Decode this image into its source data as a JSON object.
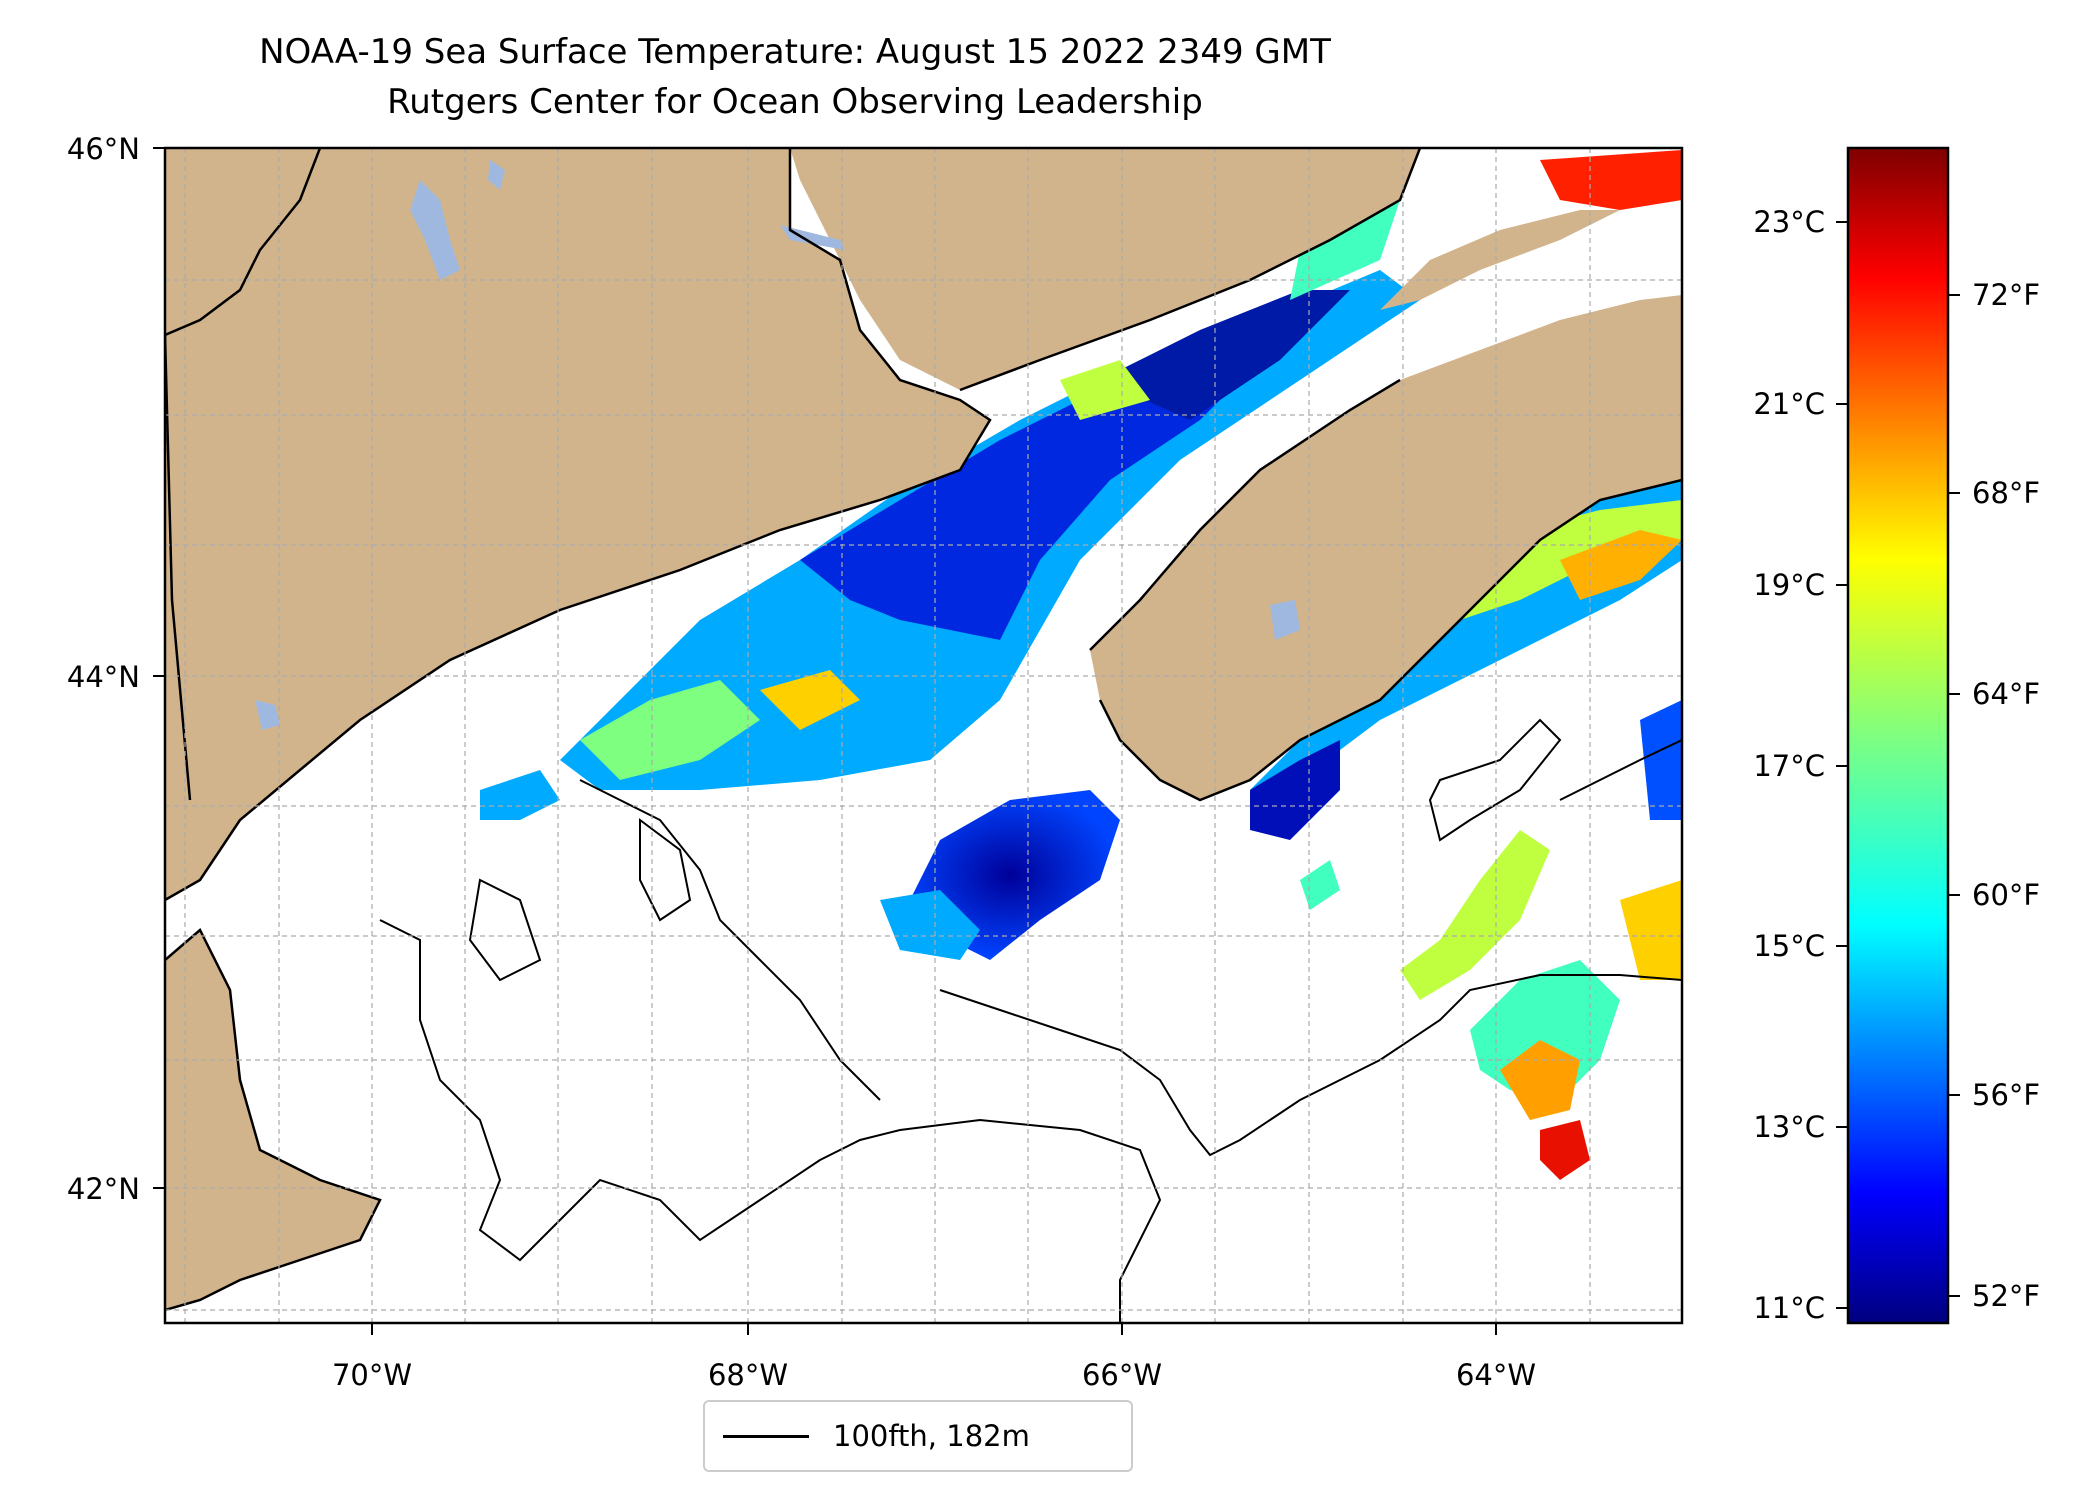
{
  "title": {
    "line1": "NOAA-19 Sea Surface Temperature: August 15 2022 2349 GMT",
    "line2": "Rutgers Center for Ocean Observing Leadership"
  },
  "map": {
    "lon_ticks": [
      "70°W",
      "68°W",
      "66°W",
      "64°W"
    ],
    "lat_ticks": [
      "46°N",
      "44°N",
      "42°N"
    ],
    "lon_range": [
      -71.2,
      -63.0
    ],
    "lat_range": [
      41.5,
      46.0
    ],
    "gridlines": true,
    "land_color": "#d2b48c",
    "lake_color": "#9fb8e0",
    "cloud_mask_color": "#ffffff"
  },
  "legend": {
    "label": "100fth, 182m",
    "placement": "bottom-center"
  },
  "colorbar": {
    "colormap": "jet",
    "celsius_ticks": [
      "23°C",
      "21°C",
      "19°C",
      "17°C",
      "15°C",
      "13°C",
      "11°C"
    ],
    "fahrenheit_ticks": [
      "72°F",
      "68°F",
      "64°F",
      "60°F",
      "56°F",
      "52°F"
    ],
    "range_c": [
      10.8,
      23.8
    ]
  }
}
